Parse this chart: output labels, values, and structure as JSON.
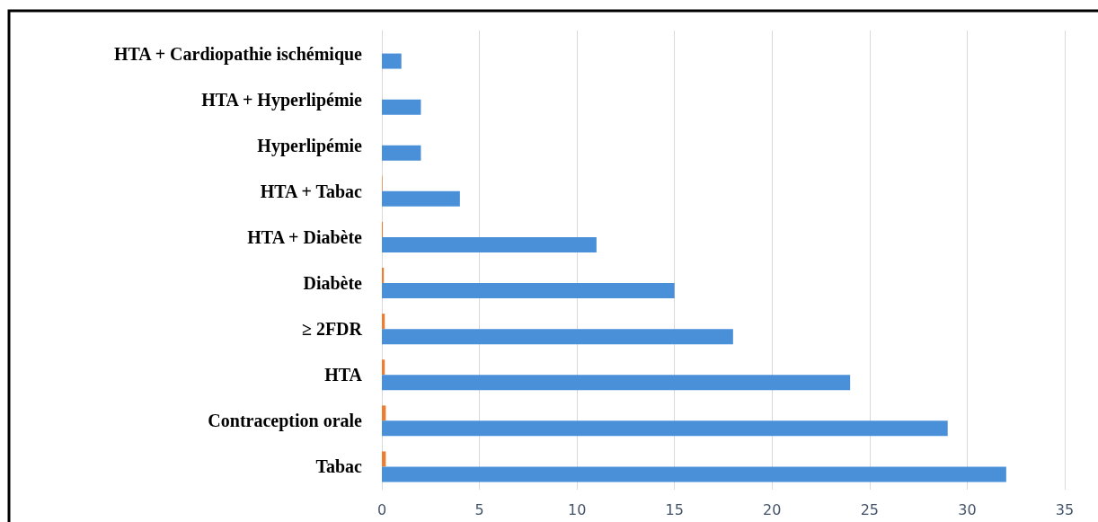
{
  "chart_data": {
    "type": "bar",
    "orientation": "horizontal",
    "categories": [
      "HTA + Cardiopathie ischémique",
      "HTA + Hyperlipémie",
      "Hyperlipémie",
      "HTA + Tabac",
      "HTA + Diabète",
      "Diabète",
      "≥ 2FDR",
      "HTA",
      "Contraception orale",
      "Tabac"
    ],
    "series": [
      {
        "color": "#ed7d31",
        "values": [
          0,
          0,
          0,
          0.03,
          0.05,
          0.1,
          0.15,
          0.15,
          0.2,
          0.2
        ]
      },
      {
        "color": "#4a90d9",
        "values": [
          1,
          2,
          2,
          4,
          11,
          15,
          18,
          24,
          29,
          32
        ]
      }
    ],
    "xlim": [
      0,
      35
    ],
    "xticks": [
      0,
      5,
      10,
      15,
      20,
      25,
      30,
      35
    ],
    "grid": "x"
  }
}
